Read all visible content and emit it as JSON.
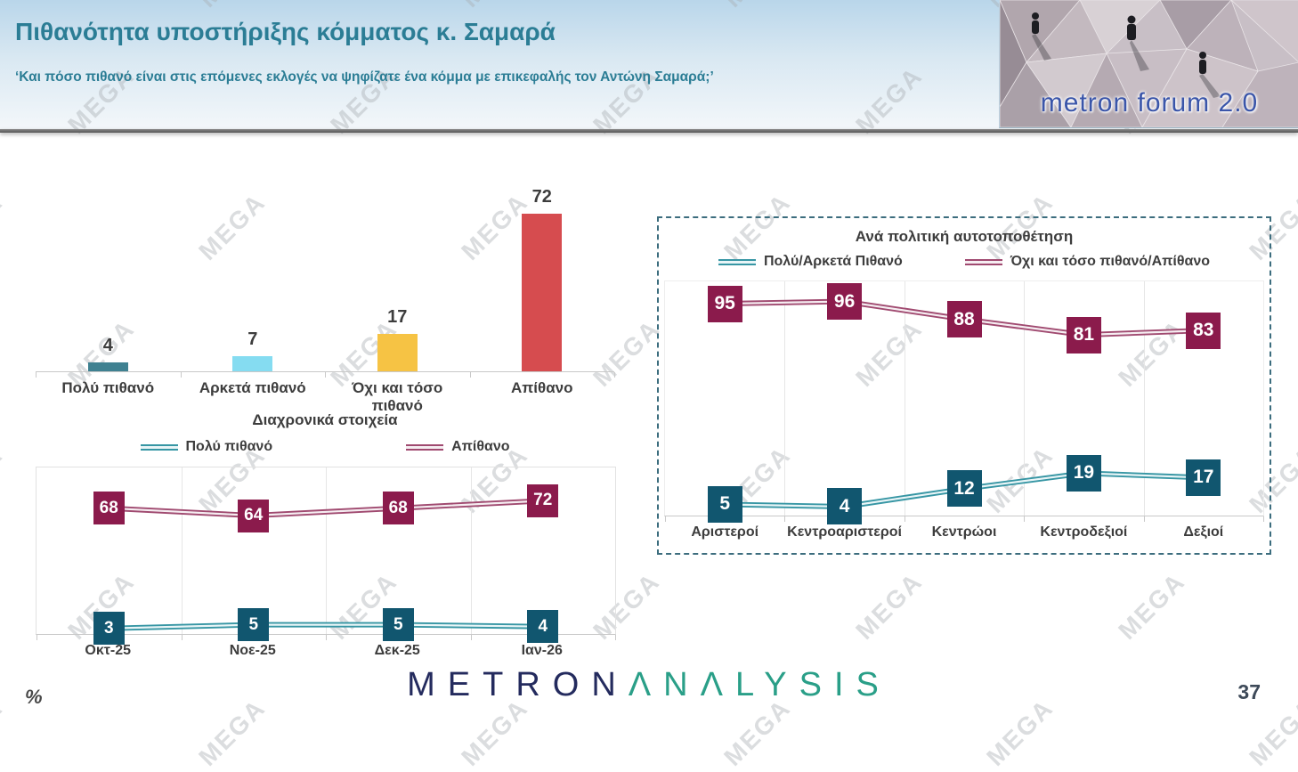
{
  "page": {
    "number": "37",
    "unit_note": "%",
    "watermark_text": "MEGA"
  },
  "header": {
    "title": "Πιθανότητα υποστήριξης κόμματος κ. Σαμαρά",
    "subtitle": "‘Και πόσο πιθανό είναι στις επόμενες εκλογές να ψηφίζατε ένα κόμμα με επικεφαλής τον Αντώνη Σαμαρά;’",
    "logo_text": "metron forum 2.0"
  },
  "footer": {
    "brand_metron": "METRON",
    "brand_analysis": "ΛNΛLYSIS"
  },
  "colors": {
    "header_title": "#2b7d95",
    "brand_navy": "#242b5e",
    "brand_green": "#2a9f88",
    "watermark": "#aab0b5",
    "label_text": "#3d3d3d"
  },
  "chart_data": [
    {
      "type": "bar",
      "title": "",
      "categories": [
        "Πολύ πιθανό",
        "Αρκετά πιθανό",
        "Όχι και τόσο πιθανό",
        "Απίθανο"
      ],
      "values": [
        4,
        7,
        17,
        72
      ],
      "bar_colors": [
        "#3f8191",
        "#85dcf1",
        "#f6c344",
        "#d64c4f"
      ],
      "ylim": [
        0,
        90
      ],
      "data_labels": true,
      "grid": false
    },
    {
      "type": "line",
      "title": "Διαχρονικά στοιχεία",
      "categories": [
        "Οκτ-25",
        "Νοε-25",
        "Δεκ-25",
        "Ιαν-26"
      ],
      "series": [
        {
          "name": "Πολύ πιθανό",
          "values": [
            3,
            5,
            5,
            4
          ],
          "color": "#3796a4",
          "inner": "#e9f5f7",
          "label_bg": "#11566f"
        },
        {
          "name": "Απίθανο",
          "values": [
            68,
            64,
            68,
            72
          ],
          "color": "#a04a70",
          "inner": "#f6eef2",
          "label_bg": "#8b1b4c"
        }
      ],
      "ylim": [
        0,
        90
      ],
      "legend_position": "top",
      "grid": "vertical"
    },
    {
      "type": "line",
      "title": "Ανά πολιτική αυτοτοποθέτηση",
      "categories": [
        "Αριστεροί",
        "Κεντροαριστεροί",
        "Κεντρώοι",
        "Κεντροδεξιοί",
        "Δεξιοί"
      ],
      "series": [
        {
          "name": "Πολύ/Αρκετά Πιθανό",
          "values": [
            5,
            4,
            12,
            19,
            17
          ],
          "color": "#3796a4",
          "inner": "#e9f5f7",
          "label_bg": "#11566f"
        },
        {
          "name": "Όχι και τόσο πιθανό/Απίθανο",
          "values": [
            95,
            96,
            88,
            81,
            83
          ],
          "color": "#a04a70",
          "inner": "#f6eef2",
          "label_bg": "#8b1b4c"
        }
      ],
      "ylim": [
        0,
        105
      ],
      "legend_position": "top",
      "grid": "vertical"
    }
  ]
}
